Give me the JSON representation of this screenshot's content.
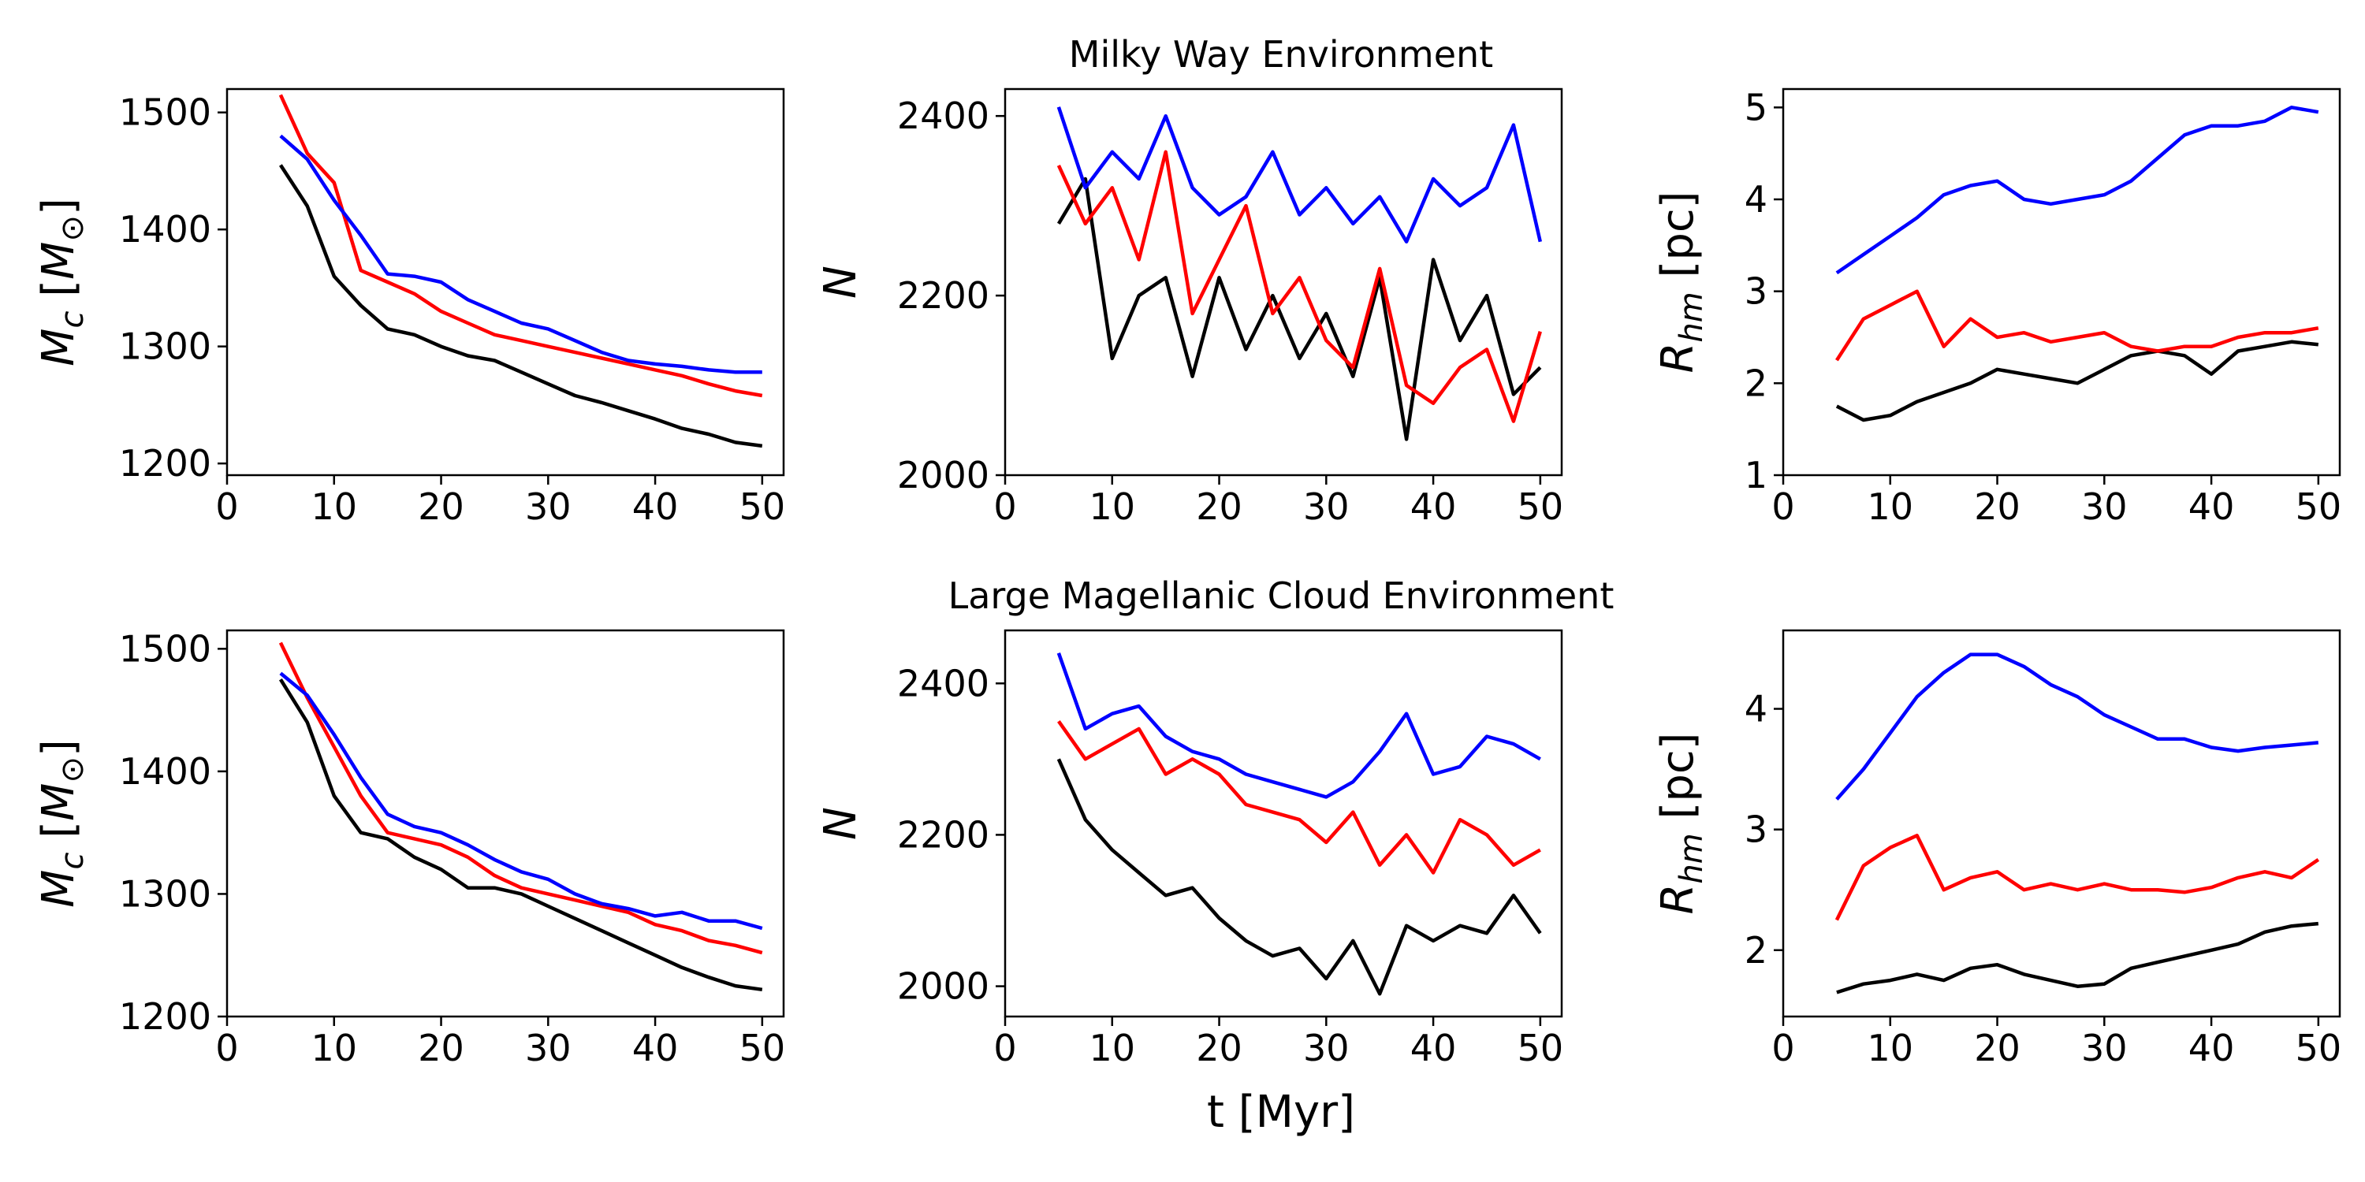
{
  "figure": {
    "row_titles": [
      "Milky Way Environment",
      "Large Magellanic Cloud Environment"
    ],
    "xlabel": "t [Myr]"
  },
  "colors": {
    "black": "#000000",
    "red": "#ff0000",
    "blue": "#0000ff"
  },
  "chart_data": [
    {
      "type": "line",
      "row": 0,
      "col": 0,
      "title": "",
      "xlabel": "",
      "ylabel": "M_c [M_sun]",
      "xlim": [
        0,
        52
      ],
      "ylim": [
        1190,
        1520
      ],
      "xticks": [
        0,
        10,
        20,
        30,
        40,
        50
      ],
      "yticks": [
        1200,
        1300,
        1400,
        1500
      ],
      "x": [
        5,
        7.5,
        10,
        12.5,
        15,
        17.5,
        20,
        22.5,
        25,
        27.5,
        30,
        32.5,
        35,
        37.5,
        40,
        42.5,
        45,
        47.5,
        50
      ],
      "series": [
        {
          "color": "black",
          "values": [
            1455,
            1420,
            1360,
            1335,
            1315,
            1310,
            1300,
            1292,
            1288,
            1278,
            1268,
            1258,
            1252,
            1245,
            1238,
            1230,
            1225,
            1218,
            1215
          ]
        },
        {
          "color": "red",
          "values": [
            1515,
            1465,
            1440,
            1365,
            1355,
            1345,
            1330,
            1320,
            1310,
            1305,
            1300,
            1295,
            1290,
            1285,
            1280,
            1275,
            1268,
            1262,
            1258
          ]
        },
        {
          "color": "blue",
          "values": [
            1480,
            1460,
            1425,
            1395,
            1362,
            1360,
            1355,
            1340,
            1330,
            1320,
            1315,
            1305,
            1295,
            1288,
            1285,
            1283,
            1280,
            1278,
            1278
          ]
        }
      ]
    },
    {
      "type": "line",
      "row": 0,
      "col": 1,
      "title": "Milky Way Environment",
      "xlabel": "",
      "ylabel": "N",
      "xlim": [
        0,
        52
      ],
      "ylim": [
        2000,
        2430
      ],
      "xticks": [
        0,
        10,
        20,
        30,
        40,
        50
      ],
      "yticks": [
        2000,
        2200,
        2400
      ],
      "x": [
        5,
        7.5,
        10,
        12.5,
        15,
        17.5,
        20,
        22.5,
        25,
        27.5,
        30,
        32.5,
        35,
        37.5,
        40,
        42.5,
        45,
        47.5,
        50
      ],
      "series": [
        {
          "color": "black",
          "values": [
            2280,
            2330,
            2130,
            2200,
            2220,
            2110,
            2220,
            2140,
            2200,
            2130,
            2180,
            2110,
            2220,
            2040,
            2240,
            2150,
            2200,
            2090,
            2120
          ]
        },
        {
          "color": "red",
          "values": [
            2345,
            2280,
            2320,
            2240,
            2360,
            2180,
            2240,
            2300,
            2180,
            2220,
            2150,
            2120,
            2230,
            2100,
            2080,
            2120,
            2140,
            2060,
            2160
          ]
        },
        {
          "color": "blue",
          "values": [
            2410,
            2320,
            2360,
            2330,
            2400,
            2320,
            2290,
            2310,
            2360,
            2290,
            2320,
            2280,
            2310,
            2260,
            2330,
            2300,
            2320,
            2390,
            2260
          ]
        }
      ]
    },
    {
      "type": "line",
      "row": 0,
      "col": 2,
      "title": "",
      "xlabel": "",
      "ylabel": "R_hm [pc]",
      "xlim": [
        0,
        52
      ],
      "ylim": [
        1,
        5.2
      ],
      "xticks": [
        0,
        10,
        20,
        30,
        40,
        50
      ],
      "yticks": [
        1,
        2,
        3,
        4,
        5
      ],
      "x": [
        5,
        7.5,
        10,
        12.5,
        15,
        17.5,
        20,
        22.5,
        25,
        27.5,
        30,
        32.5,
        35,
        37.5,
        40,
        42.5,
        45,
        47.5,
        50
      ],
      "series": [
        {
          "color": "black",
          "values": [
            1.75,
            1.6,
            1.65,
            1.8,
            1.9,
            2.0,
            2.15,
            2.1,
            2.05,
            2.0,
            2.15,
            2.3,
            2.35,
            2.3,
            2.1,
            2.35,
            2.4,
            2.45,
            2.42
          ]
        },
        {
          "color": "red",
          "values": [
            2.25,
            2.7,
            2.85,
            3.0,
            2.4,
            2.7,
            2.5,
            2.55,
            2.45,
            2.5,
            2.55,
            2.4,
            2.35,
            2.4,
            2.4,
            2.5,
            2.55,
            2.55,
            2.6
          ]
        },
        {
          "color": "blue",
          "values": [
            3.2,
            3.4,
            3.6,
            3.8,
            4.05,
            4.15,
            4.2,
            4.0,
            3.95,
            4.0,
            4.05,
            4.2,
            4.45,
            4.7,
            4.8,
            4.8,
            4.85,
            5.0,
            4.95
          ]
        }
      ]
    },
    {
      "type": "line",
      "row": 1,
      "col": 0,
      "title": "",
      "xlabel": "",
      "ylabel": "M_c [M_sun]",
      "xlim": [
        0,
        52
      ],
      "ylim": [
        1200,
        1515
      ],
      "xticks": [
        0,
        10,
        20,
        30,
        40,
        50
      ],
      "yticks": [
        1200,
        1300,
        1400,
        1500
      ],
      "x": [
        5,
        7.5,
        10,
        12.5,
        15,
        17.5,
        20,
        22.5,
        25,
        27.5,
        30,
        32.5,
        35,
        37.5,
        40,
        42.5,
        45,
        47.5,
        50
      ],
      "series": [
        {
          "color": "black",
          "values": [
            1475,
            1440,
            1380,
            1350,
            1345,
            1330,
            1320,
            1305,
            1305,
            1300,
            1290,
            1280,
            1270,
            1260,
            1250,
            1240,
            1232,
            1225,
            1222
          ]
        },
        {
          "color": "red",
          "values": [
            1505,
            1460,
            1420,
            1380,
            1350,
            1345,
            1340,
            1330,
            1315,
            1305,
            1300,
            1295,
            1290,
            1285,
            1275,
            1270,
            1262,
            1258,
            1252
          ]
        },
        {
          "color": "blue",
          "values": [
            1480,
            1462,
            1430,
            1395,
            1365,
            1355,
            1350,
            1340,
            1328,
            1318,
            1312,
            1300,
            1292,
            1288,
            1282,
            1285,
            1278,
            1278,
            1272
          ]
        }
      ]
    },
    {
      "type": "line",
      "row": 1,
      "col": 1,
      "title": "Large Magellanic Cloud Environment",
      "xlabel": "t [Myr]",
      "ylabel": "N",
      "xlim": [
        0,
        52
      ],
      "ylim": [
        1960,
        2470
      ],
      "xticks": [
        0,
        10,
        20,
        30,
        40,
        50
      ],
      "yticks": [
        2000,
        2200,
        2400
      ],
      "x": [
        5,
        7.5,
        10,
        12.5,
        15,
        17.5,
        20,
        22.5,
        25,
        27.5,
        30,
        32.5,
        35,
        37.5,
        40,
        42.5,
        45,
        47.5,
        50
      ],
      "series": [
        {
          "color": "black",
          "values": [
            2300,
            2220,
            2180,
            2150,
            2120,
            2130,
            2090,
            2060,
            2040,
            2050,
            2010,
            2060,
            1990,
            2080,
            2060,
            2080,
            2070,
            2120,
            2070
          ]
        },
        {
          "color": "red",
          "values": [
            2350,
            2300,
            2320,
            2340,
            2280,
            2300,
            2280,
            2240,
            2230,
            2220,
            2190,
            2230,
            2160,
            2200,
            2150,
            2220,
            2200,
            2160,
            2180
          ]
        },
        {
          "color": "blue",
          "values": [
            2440,
            2340,
            2360,
            2370,
            2330,
            2310,
            2300,
            2280,
            2270,
            2260,
            2250,
            2270,
            2310,
            2360,
            2280,
            2290,
            2330,
            2320,
            2300
          ]
        }
      ]
    },
    {
      "type": "line",
      "row": 1,
      "col": 2,
      "title": "",
      "xlabel": "",
      "ylabel": "R_hm [pc]",
      "xlim": [
        0,
        52
      ],
      "ylim": [
        1.45,
        4.65
      ],
      "xticks": [
        0,
        10,
        20,
        30,
        40,
        50
      ],
      "yticks": [
        2,
        3,
        4
      ],
      "x": [
        5,
        7.5,
        10,
        12.5,
        15,
        17.5,
        20,
        22.5,
        25,
        27.5,
        30,
        32.5,
        35,
        37.5,
        40,
        42.5,
        45,
        47.5,
        50
      ],
      "series": [
        {
          "color": "black",
          "values": [
            1.65,
            1.72,
            1.75,
            1.8,
            1.75,
            1.85,
            1.88,
            1.8,
            1.75,
            1.7,
            1.72,
            1.85,
            1.9,
            1.95,
            2.0,
            2.05,
            2.15,
            2.2,
            2.22
          ]
        },
        {
          "color": "red",
          "values": [
            2.25,
            2.7,
            2.85,
            2.95,
            2.5,
            2.6,
            2.65,
            2.5,
            2.55,
            2.5,
            2.55,
            2.5,
            2.5,
            2.48,
            2.52,
            2.6,
            2.65,
            2.6,
            2.75
          ]
        },
        {
          "color": "blue",
          "values": [
            3.25,
            3.5,
            3.8,
            4.1,
            4.3,
            4.45,
            4.45,
            4.35,
            4.2,
            4.1,
            3.95,
            3.85,
            3.75,
            3.75,
            3.68,
            3.65,
            3.68,
            3.7,
            3.72
          ]
        }
      ]
    }
  ]
}
